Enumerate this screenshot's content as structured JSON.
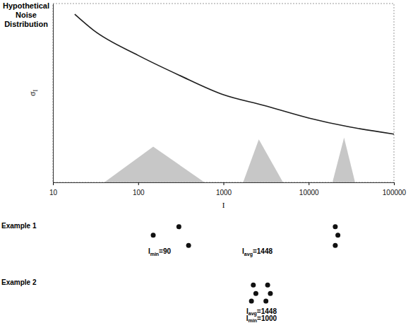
{
  "chart_data": [
    {
      "type": "line",
      "title": "Hypothetical Noise Distribution",
      "x_label": "I",
      "y_label": "σI",
      "log": "x",
      "xlim": [
        10,
        100000
      ],
      "xticks": [
        10,
        100,
        1000,
        10000,
        100000
      ],
      "ylim": [
        0,
        100
      ],
      "tick_labels": "x",
      "series": [
        {
          "type": "line",
          "color": "#1e1e1e",
          "x": [
            18,
            30,
            100,
            300,
            1000,
            3000,
            10000,
            30000,
            100000
          ],
          "values": [
            94,
            85,
            71,
            60,
            49,
            43,
            36,
            31,
            27
          ]
        },
        {
          "type": "area",
          "color": "#b4b4b4",
          "x": [
            40,
            150,
            600
          ],
          "values": [
            0,
            20,
            0
          ]
        },
        {
          "type": "area",
          "color": "#b4b4b4",
          "x": [
            1700,
            2600,
            5000
          ],
          "values": [
            0,
            24,
            0
          ]
        },
        {
          "type": "area",
          "color": "#b4b4b4",
          "x": [
            19000,
            26000,
            35000
          ],
          "values": [
            0,
            25,
            0
          ]
        }
      ]
    },
    {
      "type": "scatter",
      "title": "Example 1",
      "log": "x",
      "xlim": [
        10,
        100000
      ],
      "ylim": [
        -1.5,
        1.5
      ],
      "tick_labels": false,
      "marker": "circle",
      "color": "#111111",
      "x": [
        150,
        300,
        390,
        20500,
        22000,
        20500
      ],
      "values": [
        0.1,
        1.1,
        -1.1,
        1.1,
        0.1,
        -1.1
      ],
      "annotations": [
        {
          "text": "Imin=90",
          "x": 178,
          "y": -1.8
        },
        {
          "text": "Iavg=1448",
          "x": 2500,
          "y": -1.8
        }
      ]
    },
    {
      "type": "scatter",
      "title": "Example 2",
      "log": "x",
      "xlim": [
        10,
        100000
      ],
      "ylim": [
        -1.5,
        1.5
      ],
      "tick_labels": false,
      "marker": "circle",
      "color": "#111111",
      "x": [
        2240,
        3300,
        2400,
        3550,
        2130,
        3150
      ],
      "values": [
        0.9,
        0.9,
        -0.1,
        -0.1,
        -1.0,
        -1.0
      ],
      "annotations": [
        {
          "text": "Iavg=1448",
          "x": 2800,
          "y": -2.2
        },
        {
          "text": "Imin=1000",
          "x": 2800,
          "y": -3.0
        }
      ]
    }
  ]
}
